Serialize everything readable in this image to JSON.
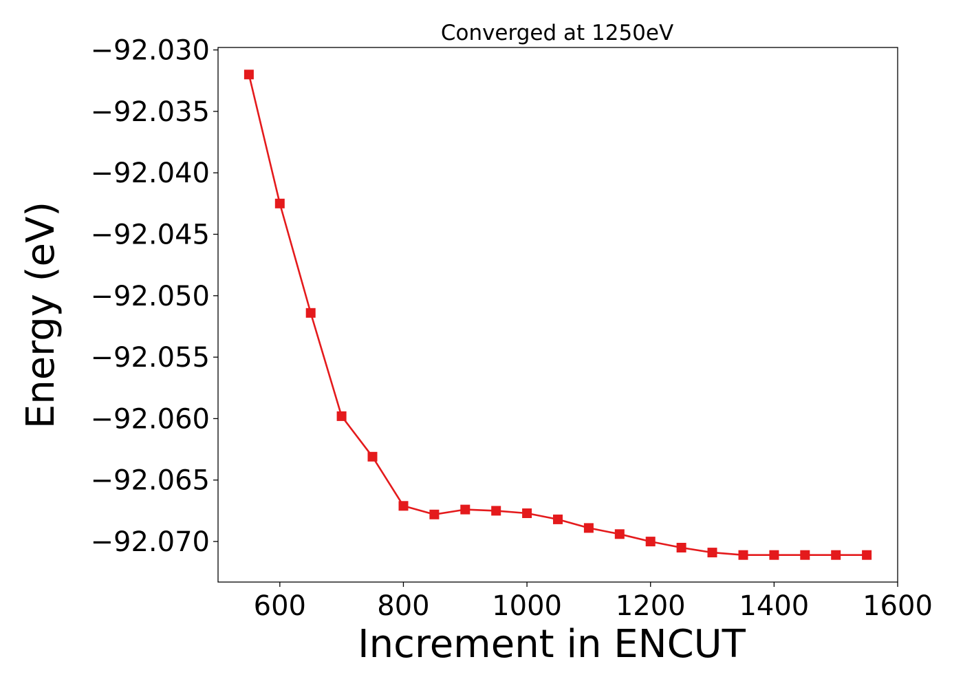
{
  "chart_data": {
    "type": "line",
    "title": "Converged at 1250eV",
    "xlabel": "Increment in ENCUT",
    "ylabel": "Energy (eV)",
    "xlim": [
      500,
      1600
    ],
    "ylim": [
      -92.0733,
      -92.0298
    ],
    "xticks": [
      600,
      800,
      1000,
      1200,
      1400,
      1600
    ],
    "xtick_labels": [
      "600",
      "800",
      "1000",
      "1200",
      "1400",
      "1600"
    ],
    "yticks": [
      -92.03,
      -92.035,
      -92.04,
      -92.045,
      -92.05,
      -92.055,
      -92.06,
      -92.065,
      -92.07
    ],
    "ytick_labels": [
      "−92.030",
      "−92.035",
      "−92.040",
      "−92.045",
      "−92.050",
      "−92.055",
      "−92.060",
      "−92.065",
      "−92.070"
    ],
    "grid": false,
    "legend": "none",
    "series": [
      {
        "color": "#e41a1c",
        "marker": "square",
        "x": [
          550,
          600,
          650,
          700,
          750,
          800,
          850,
          900,
          950,
          1000,
          1050,
          1100,
          1150,
          1200,
          1250,
          1300,
          1350,
          1400,
          1450,
          1500,
          1550
        ],
        "y": [
          -92.032,
          -92.0425,
          -92.0514,
          -92.0598,
          -92.0631,
          -92.0671,
          -92.0678,
          -92.0674,
          -92.0675,
          -92.0677,
          -92.0682,
          -92.0689,
          -92.0694,
          -92.07,
          -92.0705,
          -92.0709,
          -92.0711,
          -92.0711,
          -92.0711,
          -92.0711,
          -92.0711
        ]
      }
    ]
  }
}
